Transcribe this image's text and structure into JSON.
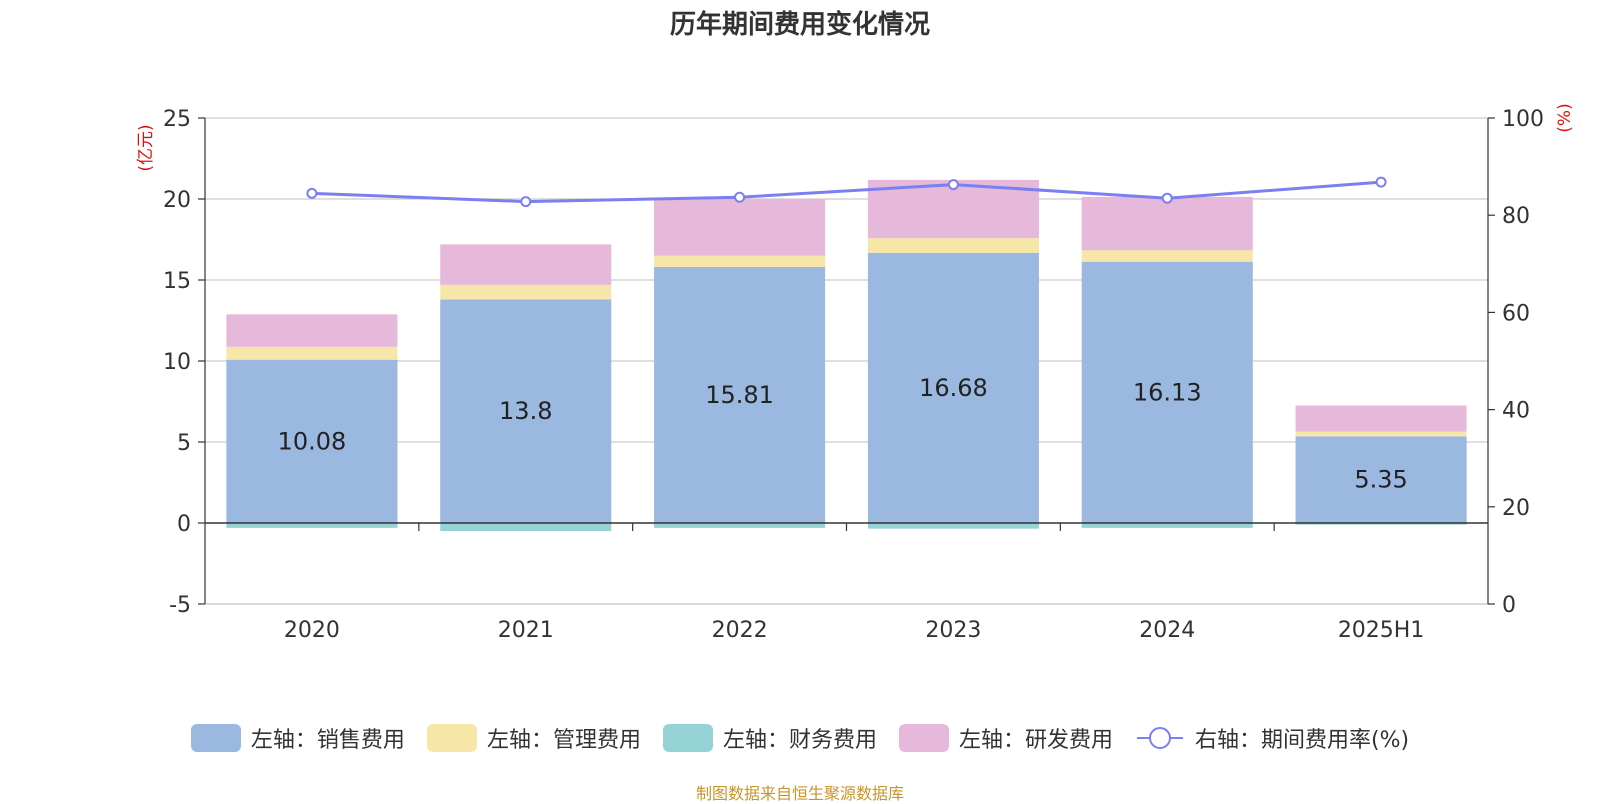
{
  "title": "历年期间费用变化情况",
  "source": "制图数据来自恒生聚源数据库",
  "chart_data": {
    "type": "bar",
    "stacked": true,
    "categories": [
      "2020",
      "2021",
      "2022",
      "2023",
      "2024",
      "2025H1"
    ],
    "left_axis": {
      "label": "(亿元)",
      "ylim": [
        -5,
        25
      ],
      "ticks": [
        "-5",
        "0",
        "5",
        "10",
        "15",
        "20",
        "25"
      ]
    },
    "right_axis": {
      "label": "(%)",
      "ylim": [
        0,
        100
      ],
      "ticks": [
        "0",
        "20",
        "40",
        "60",
        "80",
        "100"
      ]
    },
    "series": [
      {
        "name": "左轴：销售费用",
        "axis": "left",
        "color": "#9bb8e1",
        "values": [
          10.08,
          13.8,
          15.81,
          16.68,
          16.13,
          5.35
        ],
        "labels": [
          "10.08",
          "13.8",
          "15.81",
          "16.68",
          "16.13",
          "5.35"
        ]
      },
      {
        "name": "左轴：管理费用",
        "axis": "left",
        "color": "#f6e6a8",
        "values": [
          0.8,
          0.9,
          0.7,
          0.9,
          0.7,
          0.3
        ]
      },
      {
        "name": "左轴：财务费用",
        "axis": "left",
        "color": "#95d3d6",
        "values": [
          -0.3,
          -0.5,
          -0.3,
          -0.35,
          -0.3,
          -0.1
        ]
      },
      {
        "name": "左轴：研发费用",
        "axis": "left",
        "color": "#e6b8d9",
        "values": [
          2.0,
          2.5,
          3.5,
          3.6,
          3.3,
          1.6
        ]
      },
      {
        "name": "右轴：期间费用率(%)",
        "axis": "right",
        "type": "line",
        "color": "#7b7ff0",
        "values": [
          84.5,
          82.8,
          83.7,
          86.3,
          83.5,
          86.8
        ]
      }
    ],
    "legend_position": "bottom",
    "grid": true
  }
}
